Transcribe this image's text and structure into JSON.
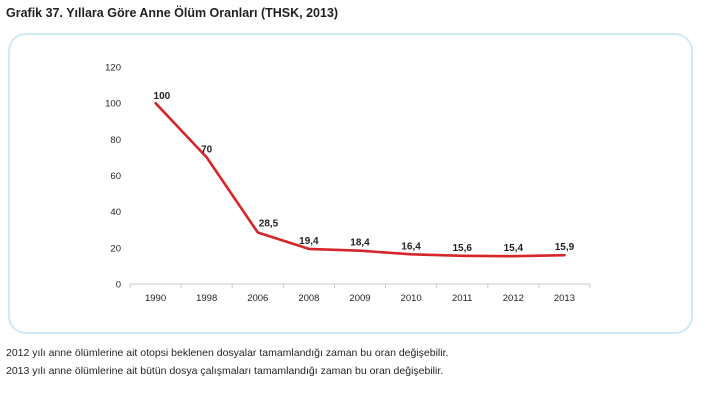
{
  "title": "Grafik 37. Yıllara Göre Anne Ölüm Oranları (THSK, 2013)",
  "notes": [
    "2012 yılı anne ölümlerine ait otopsi beklenen dosyalar tamamlandığı zaman bu oran değişebilir.",
    "2013 yılı anne ölümlerine ait bütün dosya çalışmaları tamamlandığı zaman bu oran değişebilir."
  ],
  "colors": {
    "line": "#d7262b",
    "frame": "#cfe9f7",
    "axis": "#c8c8c8"
  },
  "chart_data": {
    "type": "line",
    "title": "Grafik 37. Yıllara Göre Anne Ölüm Oranları (THSK, 2013)",
    "xlabel": "",
    "ylabel": "",
    "categories": [
      "1990",
      "1998",
      "2006",
      "2008",
      "2009",
      "2010",
      "2011",
      "2012",
      "2013"
    ],
    "series": [
      {
        "values": [
          100,
          70,
          28.5,
          19.4,
          18.4,
          16.4,
          15.6,
          15.4,
          15.9
        ],
        "labels": [
          "100",
          "70",
          "28,5",
          "19,4",
          "18,4",
          "16,4",
          "15,6",
          "15,4",
          "15,9"
        ]
      }
    ],
    "ylim": [
      0,
      120
    ],
    "yticks": [
      0,
      20,
      40,
      60,
      80,
      100,
      120
    ],
    "grid": false,
    "legend": "none"
  }
}
